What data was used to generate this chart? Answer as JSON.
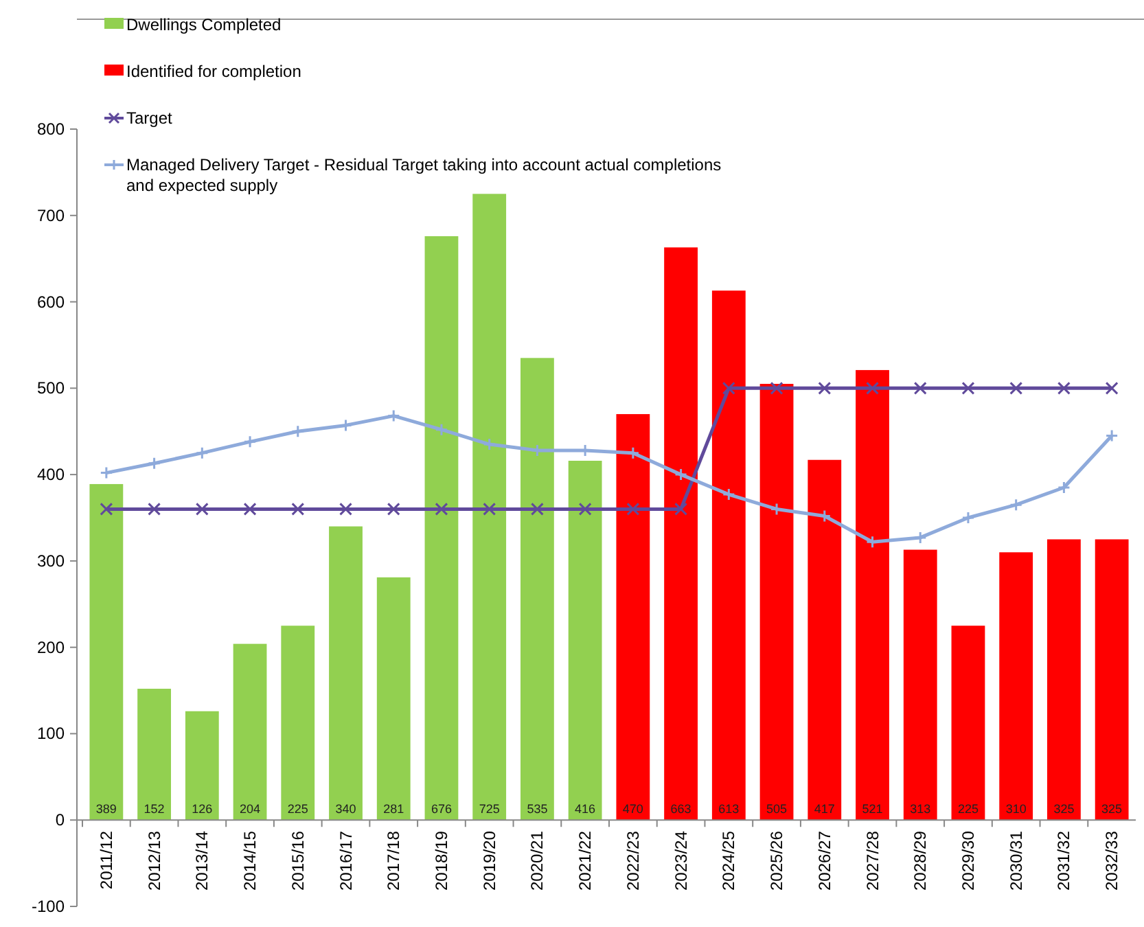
{
  "chart_data": {
    "type": "bar",
    "categories": [
      "2011/12",
      "2012/13",
      "2013/14",
      "2014/15",
      "2015/16",
      "2016/17",
      "2017/18",
      "2018/19",
      "2019/20",
      "2020/21",
      "2021/22",
      "2022/23",
      "2023/24",
      "2024/25",
      "2025/26",
      "2026/27",
      "2027/28",
      "2028/29",
      "2029/30",
      "2030/31",
      "2031/32",
      "2032/33"
    ],
    "series": [
      {
        "name": "Dwellings Completed",
        "color": "#92d050",
        "values": [
          389,
          152,
          126,
          204,
          225,
          340,
          281,
          676,
          725,
          535,
          416,
          null,
          null,
          null,
          null,
          null,
          null,
          null,
          null,
          null,
          null,
          null
        ],
        "value_labels": [
          "389",
          "152",
          "126",
          "204",
          "225",
          "340",
          "281",
          "676",
          "725",
          "535",
          "416",
          null,
          null,
          null,
          null,
          null,
          null,
          null,
          null,
          null,
          null,
          null
        ]
      },
      {
        "name": "Identified for completion",
        "color": "#ff0000",
        "values": [
          null,
          null,
          null,
          null,
          null,
          null,
          null,
          null,
          null,
          null,
          null,
          470,
          663,
          613,
          505,
          417,
          521,
          313,
          225,
          310,
          325,
          325
        ],
        "value_labels": [
          null,
          null,
          null,
          null,
          null,
          null,
          null,
          null,
          null,
          null,
          null,
          "470",
          "663",
          "613",
          "505",
          "417",
          "521",
          "313",
          "225",
          "310",
          "325",
          "325"
        ]
      },
      {
        "name": "Target",
        "type": "line",
        "color": "#604a9b",
        "marker": "cross",
        "values": [
          360,
          360,
          360,
          360,
          360,
          360,
          360,
          360,
          360,
          360,
          360,
          360,
          360,
          500,
          500,
          500,
          500,
          500,
          500,
          500,
          500,
          500
        ]
      },
      {
        "name": "Managed Delivery Target - Residual Target taking into account actual completions and expected supply",
        "type": "line",
        "color": "#8eaadb",
        "marker": "plus",
        "values": [
          402,
          413,
          425,
          438,
          450,
          457,
          468,
          452,
          435,
          428,
          428,
          425,
          400,
          377,
          360,
          352,
          322,
          327,
          350,
          365,
          385,
          445
        ]
      }
    ],
    "ylim": [
      -100,
      800
    ],
    "yticks": [
      -100,
      0,
      100,
      200,
      300,
      400,
      500,
      600,
      700,
      800
    ],
    "grid": false,
    "legend": "top left",
    "line_style": "solid"
  }
}
